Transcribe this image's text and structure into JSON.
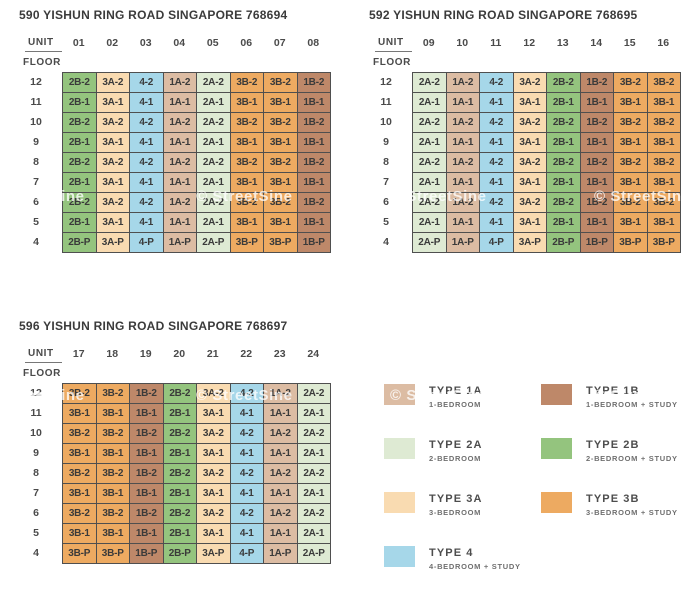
{
  "buildings": [
    {
      "title": "590 YISHUN RING ROAD SINGAPORE 768694",
      "unit_label": "UNIT",
      "floor_label": "FLOOR",
      "unit_numbers": [
        "01",
        "02",
        "03",
        "04",
        "05",
        "06",
        "07",
        "08"
      ],
      "floors": [
        "12",
        "11",
        "10",
        "9",
        "8",
        "7",
        "6",
        "5",
        "4"
      ],
      "rows": [
        [
          "2B-2",
          "3A-2",
          "4-2",
          "1A-2",
          "2A-2",
          "3B-2",
          "3B-2",
          "1B-2"
        ],
        [
          "2B-1",
          "3A-1",
          "4-1",
          "1A-1",
          "2A-1",
          "3B-1",
          "3B-1",
          "1B-1"
        ],
        [
          "2B-2",
          "3A-2",
          "4-2",
          "1A-2",
          "2A-2",
          "3B-2",
          "3B-2",
          "1B-2"
        ],
        [
          "2B-1",
          "3A-1",
          "4-1",
          "1A-1",
          "2A-1",
          "3B-1",
          "3B-1",
          "1B-1"
        ],
        [
          "2B-2",
          "3A-2",
          "4-2",
          "1A-2",
          "2A-2",
          "3B-2",
          "3B-2",
          "1B-2"
        ],
        [
          "2B-1",
          "3A-1",
          "4-1",
          "1A-1",
          "2A-1",
          "3B-1",
          "3B-1",
          "1B-1"
        ],
        [
          "2B-2",
          "3A-2",
          "4-2",
          "1A-2",
          "2A-2",
          "3B-2",
          "3B-2",
          "1B-2"
        ],
        [
          "2B-1",
          "3A-1",
          "4-1",
          "1A-1",
          "2A-1",
          "3B-1",
          "3B-1",
          "1B-1"
        ],
        [
          "2B-P",
          "3A-P",
          "4-P",
          "1A-P",
          "2A-P",
          "3B-P",
          "3B-P",
          "1B-P"
        ]
      ]
    },
    {
      "title": "592 YISHUN RING ROAD SINGAPORE 768695",
      "unit_label": "UNIT",
      "floor_label": "FLOOR",
      "unit_numbers": [
        "09",
        "10",
        "11",
        "12",
        "13",
        "14",
        "15",
        "16"
      ],
      "floors": [
        "12",
        "11",
        "10",
        "9",
        "8",
        "7",
        "6",
        "5",
        "4"
      ],
      "rows": [
        [
          "2A-2",
          "1A-2",
          "4-2",
          "3A-2",
          "2B-2",
          "1B-2",
          "3B-2",
          "3B-2"
        ],
        [
          "2A-1",
          "1A-1",
          "4-1",
          "3A-1",
          "2B-1",
          "1B-1",
          "3B-1",
          "3B-1"
        ],
        [
          "2A-2",
          "1A-2",
          "4-2",
          "3A-2",
          "2B-2",
          "1B-2",
          "3B-2",
          "3B-2"
        ],
        [
          "2A-1",
          "1A-1",
          "4-1",
          "3A-1",
          "2B-1",
          "1B-1",
          "3B-1",
          "3B-1"
        ],
        [
          "2A-2",
          "1A-2",
          "4-2",
          "3A-2",
          "2B-2",
          "1B-2",
          "3B-2",
          "3B-2"
        ],
        [
          "2A-1",
          "1A-1",
          "4-1",
          "3A-1",
          "2B-1",
          "1B-1",
          "3B-1",
          "3B-1"
        ],
        [
          "2A-2",
          "1A-2",
          "4-2",
          "3A-2",
          "2B-2",
          "1B-2",
          "3B-2",
          "3B-2"
        ],
        [
          "2A-1",
          "1A-1",
          "4-1",
          "3A-1",
          "2B-1",
          "1B-1",
          "3B-1",
          "3B-1"
        ],
        [
          "2A-P",
          "1A-P",
          "4-P",
          "3A-P",
          "2B-P",
          "1B-P",
          "3B-P",
          "3B-P"
        ]
      ]
    },
    {
      "title": "596 YISHUN RING ROAD SINGAPORE 768697",
      "unit_label": "UNIT",
      "floor_label": "FLOOR",
      "unit_numbers": [
        "17",
        "18",
        "19",
        "20",
        "21",
        "22",
        "23",
        "24"
      ],
      "floors": [
        "12",
        "11",
        "10",
        "9",
        "8",
        "7",
        "6",
        "5",
        "4"
      ],
      "rows": [
        [
          "3B-2",
          "3B-2",
          "1B-2",
          "2B-2",
          "3A-2",
          "4-2",
          "1A-2",
          "2A-2"
        ],
        [
          "3B-1",
          "3B-1",
          "1B-1",
          "2B-1",
          "3A-1",
          "4-1",
          "1A-1",
          "2A-1"
        ],
        [
          "3B-2",
          "3B-2",
          "1B-2",
          "2B-2",
          "3A-2",
          "4-2",
          "1A-2",
          "2A-2"
        ],
        [
          "3B-1",
          "3B-1",
          "1B-1",
          "2B-1",
          "3A-1",
          "4-1",
          "1A-1",
          "2A-1"
        ],
        [
          "3B-2",
          "3B-2",
          "1B-2",
          "2B-2",
          "3A-2",
          "4-2",
          "1A-2",
          "2A-2"
        ],
        [
          "3B-1",
          "3B-1",
          "1B-1",
          "2B-1",
          "3A-1",
          "4-1",
          "1A-1",
          "2A-1"
        ],
        [
          "3B-2",
          "3B-2",
          "1B-2",
          "2B-2",
          "3A-2",
          "4-2",
          "1A-2",
          "2A-2"
        ],
        [
          "3B-1",
          "3B-1",
          "1B-1",
          "2B-1",
          "3A-1",
          "4-1",
          "1A-1",
          "2A-1"
        ],
        [
          "3B-P",
          "3B-P",
          "1B-P",
          "2B-P",
          "3A-P",
          "4-P",
          "1A-P",
          "2A-P"
        ]
      ]
    }
  ],
  "type_colors": {
    "1A": "#dcbca3",
    "1B": "#be8869",
    "2A": "#deead3",
    "2B": "#94c47e",
    "3A": "#f9dbb1",
    "3B": "#edaa61",
    "4": "#a6d7e9"
  },
  "legend": {
    "items": [
      {
        "code": "1A",
        "label": "TYPE 1A",
        "sublabel": "1-BEDROOM"
      },
      {
        "code": "1B",
        "label": "TYPE 1B",
        "sublabel": "1-BEDROOM + STUDY"
      },
      {
        "code": "2A",
        "label": "TYPE 2A",
        "sublabel": "2-BEDROOM"
      },
      {
        "code": "2B",
        "label": "TYPE 2B",
        "sublabel": "2-BEDROOM + STUDY"
      },
      {
        "code": "3A",
        "label": "TYPE 3A",
        "sublabel": "3-BEDROOM"
      },
      {
        "code": "3B",
        "label": "TYPE 3B",
        "sublabel": "3-BEDROOM + STUDY"
      },
      {
        "code": "4",
        "label": "TYPE 4",
        "sublabel": "4-BEDROOM + STUDY"
      }
    ]
  },
  "watermark": {
    "text": "© StreetSine"
  }
}
